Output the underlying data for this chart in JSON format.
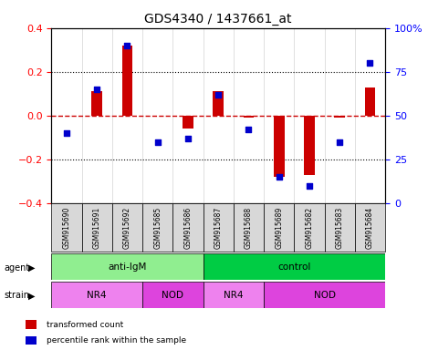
{
  "title": "GDS4340 / 1437661_at",
  "samples": [
    "GSM915690",
    "GSM915691",
    "GSM915692",
    "GSM915685",
    "GSM915686",
    "GSM915687",
    "GSM915688",
    "GSM915689",
    "GSM915682",
    "GSM915683",
    "GSM915684"
  ],
  "bar_values": [
    0.0,
    0.11,
    0.32,
    0.0,
    -0.06,
    0.11,
    -0.01,
    -0.28,
    -0.27,
    -0.01,
    0.13
  ],
  "dot_values": [
    40,
    65,
    90,
    35,
    37,
    62,
    42,
    15,
    10,
    35,
    80
  ],
  "bar_color": "#cc0000",
  "dot_color": "#0000cc",
  "ylim_left": [
    -0.4,
    0.4
  ],
  "ylim_right": [
    0,
    100
  ],
  "yticks_left": [
    -0.4,
    -0.2,
    0.0,
    0.2,
    0.4
  ],
  "yticks_right": [
    0,
    25,
    50,
    75,
    100
  ],
  "ytick_right_labels": [
    "0",
    "25",
    "50",
    "75",
    "100%"
  ],
  "hline_y": 0.0,
  "hline_color": "#cc0000",
  "dotted_lines": [
    -0.2,
    0.2
  ],
  "agent_groups": [
    {
      "label": "anti-IgM",
      "start": 0,
      "end": 5,
      "color": "#90ee90"
    },
    {
      "label": "control",
      "start": 5,
      "end": 11,
      "color": "#00cc44"
    }
  ],
  "strain_groups": [
    {
      "label": "NR4",
      "start": 0,
      "end": 3,
      "color": "#ee82ee"
    },
    {
      "label": "NOD",
      "start": 3,
      "end": 5,
      "color": "#dd44dd"
    },
    {
      "label": "NR4",
      "start": 5,
      "end": 7,
      "color": "#ee82ee"
    },
    {
      "label": "NOD",
      "start": 7,
      "end": 11,
      "color": "#dd44dd"
    }
  ],
  "legend_items": [
    {
      "label": "transformed count",
      "color": "#cc0000"
    },
    {
      "label": "percentile rank within the sample",
      "color": "#0000cc"
    }
  ],
  "agent_label": "agent",
  "strain_label": "strain",
  "bg_color": "#f0f0f0",
  "plot_bg": "#ffffff"
}
